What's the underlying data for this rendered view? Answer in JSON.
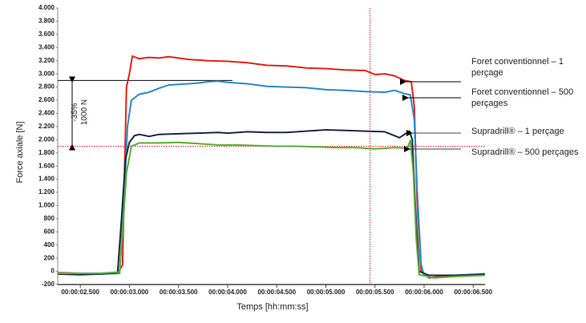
{
  "chart_data": {
    "type": "line",
    "y_label": "Force axiale [N]",
    "x_label": "Temps [hh:mm:ss]",
    "xlim": [
      2.27,
      6.62
    ],
    "ylim": [
      -200,
      4000
    ],
    "xticks": [
      {
        "value": 2.5,
        "label": "00:00:02.500"
      },
      {
        "value": 3.0,
        "label": "00:00:03.000"
      },
      {
        "value": 3.5,
        "label": "00:00:03.500"
      },
      {
        "value": 4.0,
        "label": "00:00:04.000"
      },
      {
        "value": 4.5,
        "label": "00:00:04.500"
      },
      {
        "value": 5.0,
        "label": "00:00:05.000"
      },
      {
        "value": 5.5,
        "label": "00:00:05.500"
      },
      {
        "value": 6.0,
        "label": "00:00:06.000"
      },
      {
        "value": 6.5,
        "label": "00:00:06.500"
      }
    ],
    "yticks": [
      {
        "value": 4000,
        "label": "4.000"
      },
      {
        "value": 3800,
        "label": "3.800"
      },
      {
        "value": 3600,
        "label": "3.600"
      },
      {
        "value": 3400,
        "label": "3.400"
      },
      {
        "value": 3200,
        "label": "3.200"
      },
      {
        "value": 3000,
        "label": "3.000"
      },
      {
        "value": 2800,
        "label": "2.800"
      },
      {
        "value": 2600,
        "label": "2.600"
      },
      {
        "value": 2400,
        "label": "2.400"
      },
      {
        "value": 2200,
        "label": "2.200"
      },
      {
        "value": 2000,
        "label": "2.000"
      },
      {
        "value": 1800,
        "label": "1.800"
      },
      {
        "value": 1600,
        "label": "1.600"
      },
      {
        "value": 1400,
        "label": "1.400"
      },
      {
        "value": 1200,
        "label": "1.200"
      },
      {
        "value": 1000,
        "label": "1.000"
      },
      800,
      600,
      400,
      200,
      0,
      -200
    ],
    "grid": false,
    "hlines": [
      {
        "value": 2900,
        "color": "#000000",
        "dashed": false
      },
      {
        "value": 1900,
        "color": "#e2231a",
        "dashed": true
      }
    ],
    "vlines": [
      {
        "value": 5.45,
        "color": "#e2231a",
        "dashed": true
      }
    ],
    "annotations": [
      "1000 N",
      "-35%"
    ],
    "series": [
      {
        "name": "Foret conventionnel – 1 perçage",
        "color": "#e2231a",
        "x": [
          2.27,
          2.5,
          2.7,
          2.88,
          2.93,
          2.95,
          2.97,
          3.0,
          3.03,
          3.1,
          3.2,
          3.3,
          3.4,
          3.5,
          3.6,
          3.7,
          3.8,
          4.0,
          4.2,
          4.4,
          4.6,
          4.8,
          5.0,
          5.2,
          5.4,
          5.5,
          5.6,
          5.7,
          5.8,
          5.87,
          5.9,
          5.93,
          5.97,
          6.05,
          6.2,
          6.4,
          6.62
        ],
        "values": [
          -20,
          -30,
          -40,
          -30,
          100,
          1500,
          2800,
          3000,
          3270,
          3230,
          3250,
          3240,
          3260,
          3240,
          3220,
          3210,
          3200,
          3190,
          3170,
          3130,
          3120,
          3090,
          3080,
          3060,
          3050,
          2990,
          3000,
          2970,
          2900,
          2880,
          2500,
          1000,
          0,
          -100,
          -70,
          -60,
          -50
        ]
      },
      {
        "name": "Foret conventionnel – 500 perçages",
        "color": "#2b8ac6",
        "x": [
          2.27,
          2.5,
          2.7,
          2.9,
          2.95,
          2.98,
          3.02,
          3.1,
          3.2,
          3.3,
          3.4,
          3.5,
          3.6,
          3.7,
          3.8,
          3.9,
          4.0,
          4.2,
          4.4,
          4.6,
          4.8,
          5.0,
          5.2,
          5.4,
          5.6,
          5.7,
          5.8,
          5.86,
          5.9,
          5.93,
          5.97,
          6.0,
          6.2,
          6.4,
          6.62
        ],
        "values": [
          -40,
          -40,
          -40,
          -30,
          1200,
          2200,
          2600,
          2690,
          2720,
          2780,
          2830,
          2840,
          2850,
          2860,
          2880,
          2890,
          2870,
          2850,
          2810,
          2800,
          2790,
          2760,
          2750,
          2730,
          2720,
          2750,
          2700,
          2680,
          2300,
          1200,
          100,
          -60,
          -60,
          -60,
          -40
        ]
      },
      {
        "name": "Supradrill® – 1 perçage",
        "color": "#1a2a44",
        "x": [
          2.27,
          2.5,
          2.7,
          2.88,
          2.92,
          2.96,
          3.0,
          3.05,
          3.1,
          3.2,
          3.3,
          3.5,
          3.7,
          3.9,
          4.0,
          4.2,
          4.4,
          4.6,
          4.8,
          5.0,
          5.2,
          5.4,
          5.6,
          5.75,
          5.85,
          5.88,
          5.91,
          5.95,
          6.05,
          6.3,
          6.62
        ],
        "values": [
          -40,
          -50,
          -40,
          -20,
          800,
          1700,
          1960,
          2060,
          2080,
          2050,
          2080,
          2090,
          2100,
          2110,
          2100,
          2120,
          2110,
          2110,
          2130,
          2150,
          2140,
          2130,
          2120,
          2030,
          2130,
          2000,
          1000,
          0,
          -60,
          -60,
          -40
        ]
      },
      {
        "name": "Supradrill® – 500 perçages",
        "color": "#5aad3a",
        "x": [
          2.27,
          2.5,
          2.7,
          2.9,
          2.93,
          2.97,
          3.02,
          3.1,
          3.3,
          3.5,
          3.7,
          3.9,
          4.1,
          4.3,
          4.5,
          4.7,
          4.9,
          5.1,
          5.3,
          5.5,
          5.7,
          5.83,
          5.86,
          5.89,
          5.92,
          5.95,
          6.1,
          6.3,
          6.62
        ],
        "values": [
          -30,
          -30,
          -30,
          -10,
          600,
          1500,
          1900,
          1950,
          1950,
          1960,
          1940,
          1920,
          1920,
          1910,
          1900,
          1900,
          1890,
          1880,
          1880,
          1860,
          1880,
          1870,
          1990,
          1500,
          500,
          -50,
          -100,
          -80,
          -60
        ]
      }
    ]
  }
}
